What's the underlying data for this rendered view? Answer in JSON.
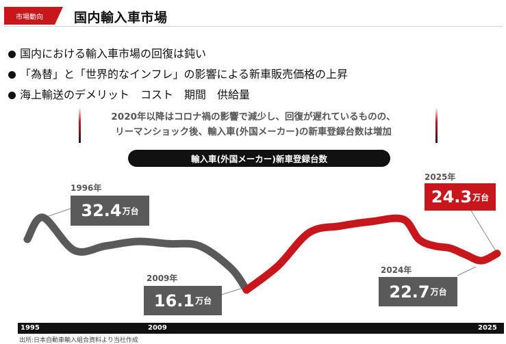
{
  "header": {
    "tag": "市場動向",
    "title": "国内輸入車市場"
  },
  "bullets": [
    "国内における輸入車市場の回復は鈍い",
    "「為替」と「世界的なインフレ」の影響による新車販売価格の上昇",
    "海上輸送のデメリット　コスト　期間　供給量"
  ],
  "summary": {
    "line1": "2020年以降はコロナ禍の影響で減少し、回復が遅れているものの、",
    "line2": "リーマンショック後、輸入車(外国メーカー)の新車登録台数は増加"
  },
  "chart_label": "輸入車(外国メーカー)新車登録台数",
  "callouts": {
    "y1996": {
      "year": "1996年",
      "value": "32.4",
      "unit": "万台"
    },
    "y2009": {
      "year": "2009年",
      "value": "16.1",
      "unit": "万台"
    },
    "y2024": {
      "year": "2024年",
      "value": "22.7",
      "unit": "万台"
    },
    "y2025": {
      "year": "2025年",
      "value": "24.3",
      "unit": "万台"
    }
  },
  "axis": {
    "start": "1995",
    "mid": "2009",
    "end": "2025"
  },
  "source": "出所:日本自動車輸入組合資料より当社作成",
  "colors": {
    "accent": "#c8161d",
    "gray": "#5a5a5a"
  },
  "chart_data": {
    "type": "line",
    "x_ticks": [
      "1995",
      "2009",
      "2025"
    ],
    "series": [
      {
        "segment_color": "gray",
        "x": [
          1995,
          1996,
          1998,
          2000,
          2002,
          2004,
          2006,
          2008,
          2009
        ],
        "y": [
          27.5,
          32.4,
          25.0,
          26.0,
          27.0,
          26.5,
          26.0,
          21.0,
          16.1
        ]
      },
      {
        "segment_color": "red",
        "x": [
          2009,
          2011,
          2013,
          2015,
          2017,
          2019,
          2020,
          2021,
          2022,
          2023,
          2024,
          2025
        ],
        "y": [
          16.1,
          21.5,
          29.0,
          30.5,
          31.5,
          32.0,
          27.5,
          26.0,
          25.5,
          24.0,
          22.7,
          24.3
        ]
      }
    ]
  }
}
